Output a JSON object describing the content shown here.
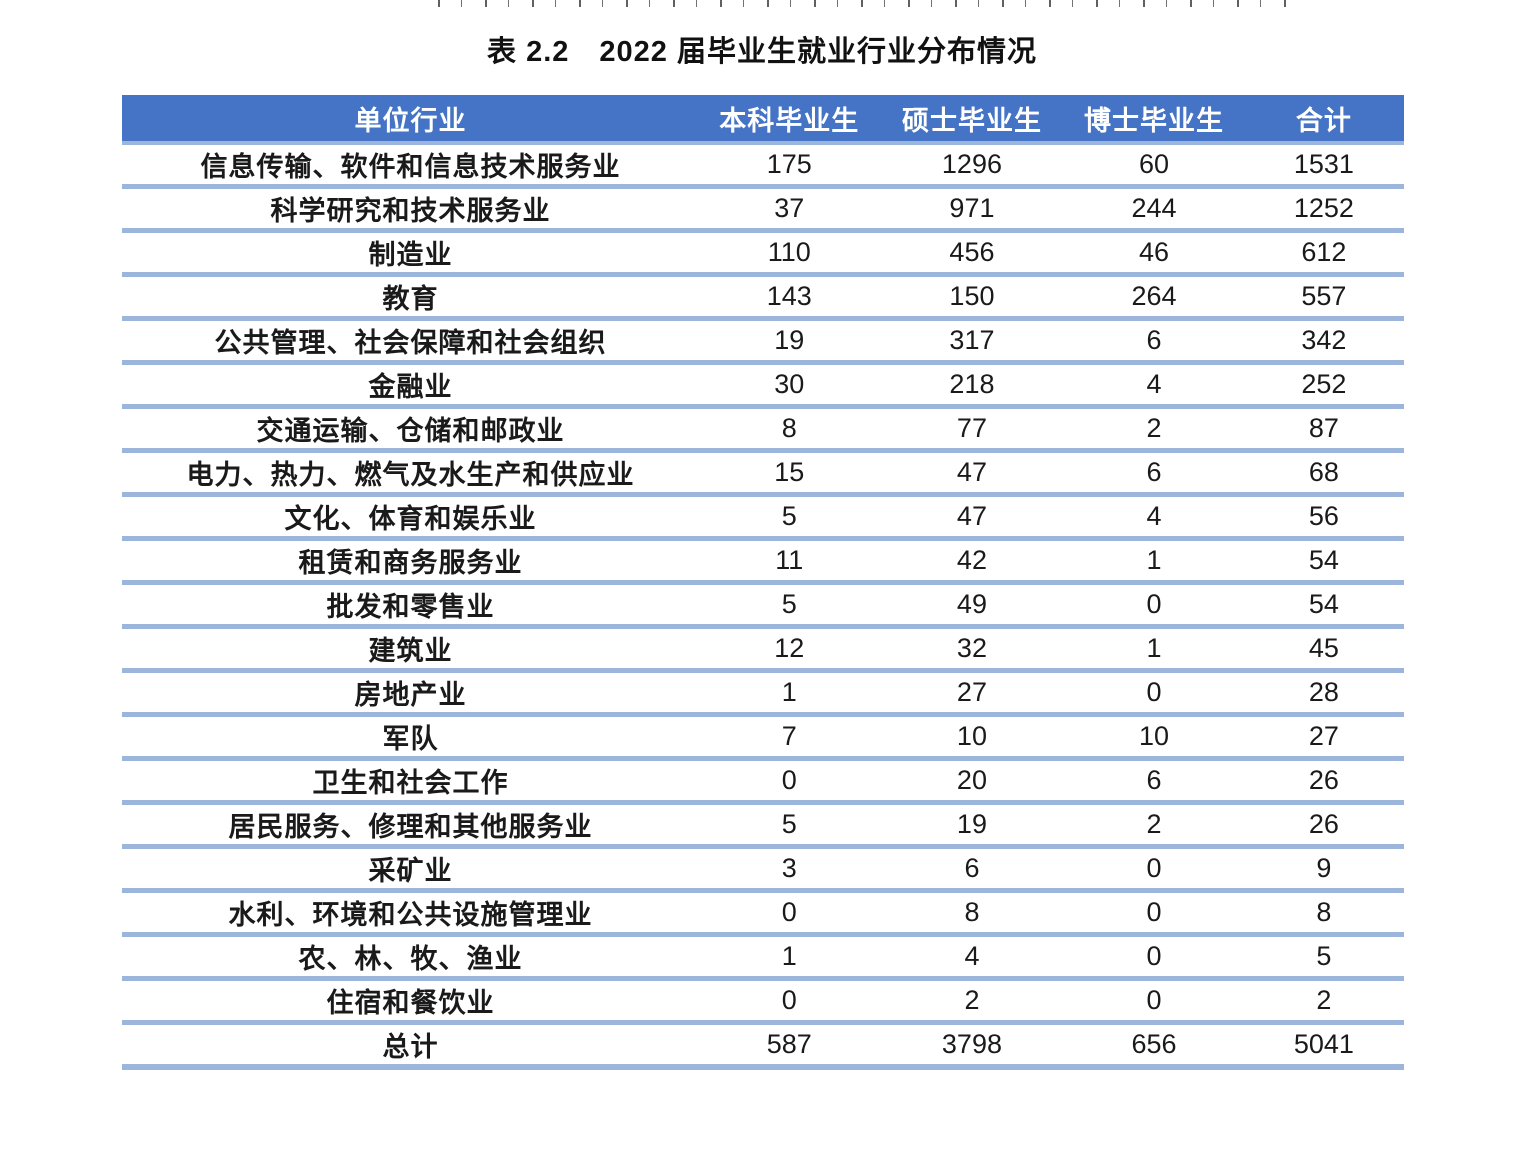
{
  "page": {
    "title": "表 2.2　2022 届毕业生就业行业分布情况"
  },
  "table": {
    "columns": [
      "单位行业",
      "本科毕业生",
      "硕士毕业生",
      "博士毕业生",
      "合计"
    ],
    "rows": [
      [
        "信息传输、软件和信息技术服务业",
        "175",
        "1296",
        "60",
        "1531"
      ],
      [
        "科学研究和技术服务业",
        "37",
        "971",
        "244",
        "1252"
      ],
      [
        "制造业",
        "110",
        "456",
        "46",
        "612"
      ],
      [
        "教育",
        "143",
        "150",
        "264",
        "557"
      ],
      [
        "公共管理、社会保障和社会组织",
        "19",
        "317",
        "6",
        "342"
      ],
      [
        "金融业",
        "30",
        "218",
        "4",
        "252"
      ],
      [
        "交通运输、仓储和邮政业",
        "8",
        "77",
        "2",
        "87"
      ],
      [
        "电力、热力、燃气及水生产和供应业",
        "15",
        "47",
        "6",
        "68"
      ],
      [
        "文化、体育和娱乐业",
        "5",
        "47",
        "4",
        "56"
      ],
      [
        "租赁和商务服务业",
        "11",
        "42",
        "1",
        "54"
      ],
      [
        "批发和零售业",
        "5",
        "49",
        "0",
        "54"
      ],
      [
        "建筑业",
        "12",
        "32",
        "1",
        "45"
      ],
      [
        "房地产业",
        "1",
        "27",
        "0",
        "28"
      ],
      [
        "军队",
        "7",
        "10",
        "10",
        "27"
      ],
      [
        "卫生和社会工作",
        "0",
        "20",
        "6",
        "26"
      ],
      [
        "居民服务、修理和其他服务业",
        "5",
        "19",
        "2",
        "26"
      ],
      [
        "采矿业",
        "3",
        "6",
        "0",
        "9"
      ],
      [
        "水利、环境和公共设施管理业",
        "0",
        "8",
        "0",
        "8"
      ],
      [
        "农、林、牧、渔业",
        "1",
        "4",
        "0",
        "5"
      ],
      [
        "住宿和餐饮业",
        "0",
        "2",
        "0",
        "2"
      ]
    ],
    "total_row": [
      "总计",
      "587",
      "3798",
      "656",
      "5041"
    ],
    "colors": {
      "header_bg": "#4573C5",
      "header_text": "#FFFFFF",
      "separator": "#9CB6DB",
      "body_text": "#1A1A1A"
    }
  }
}
